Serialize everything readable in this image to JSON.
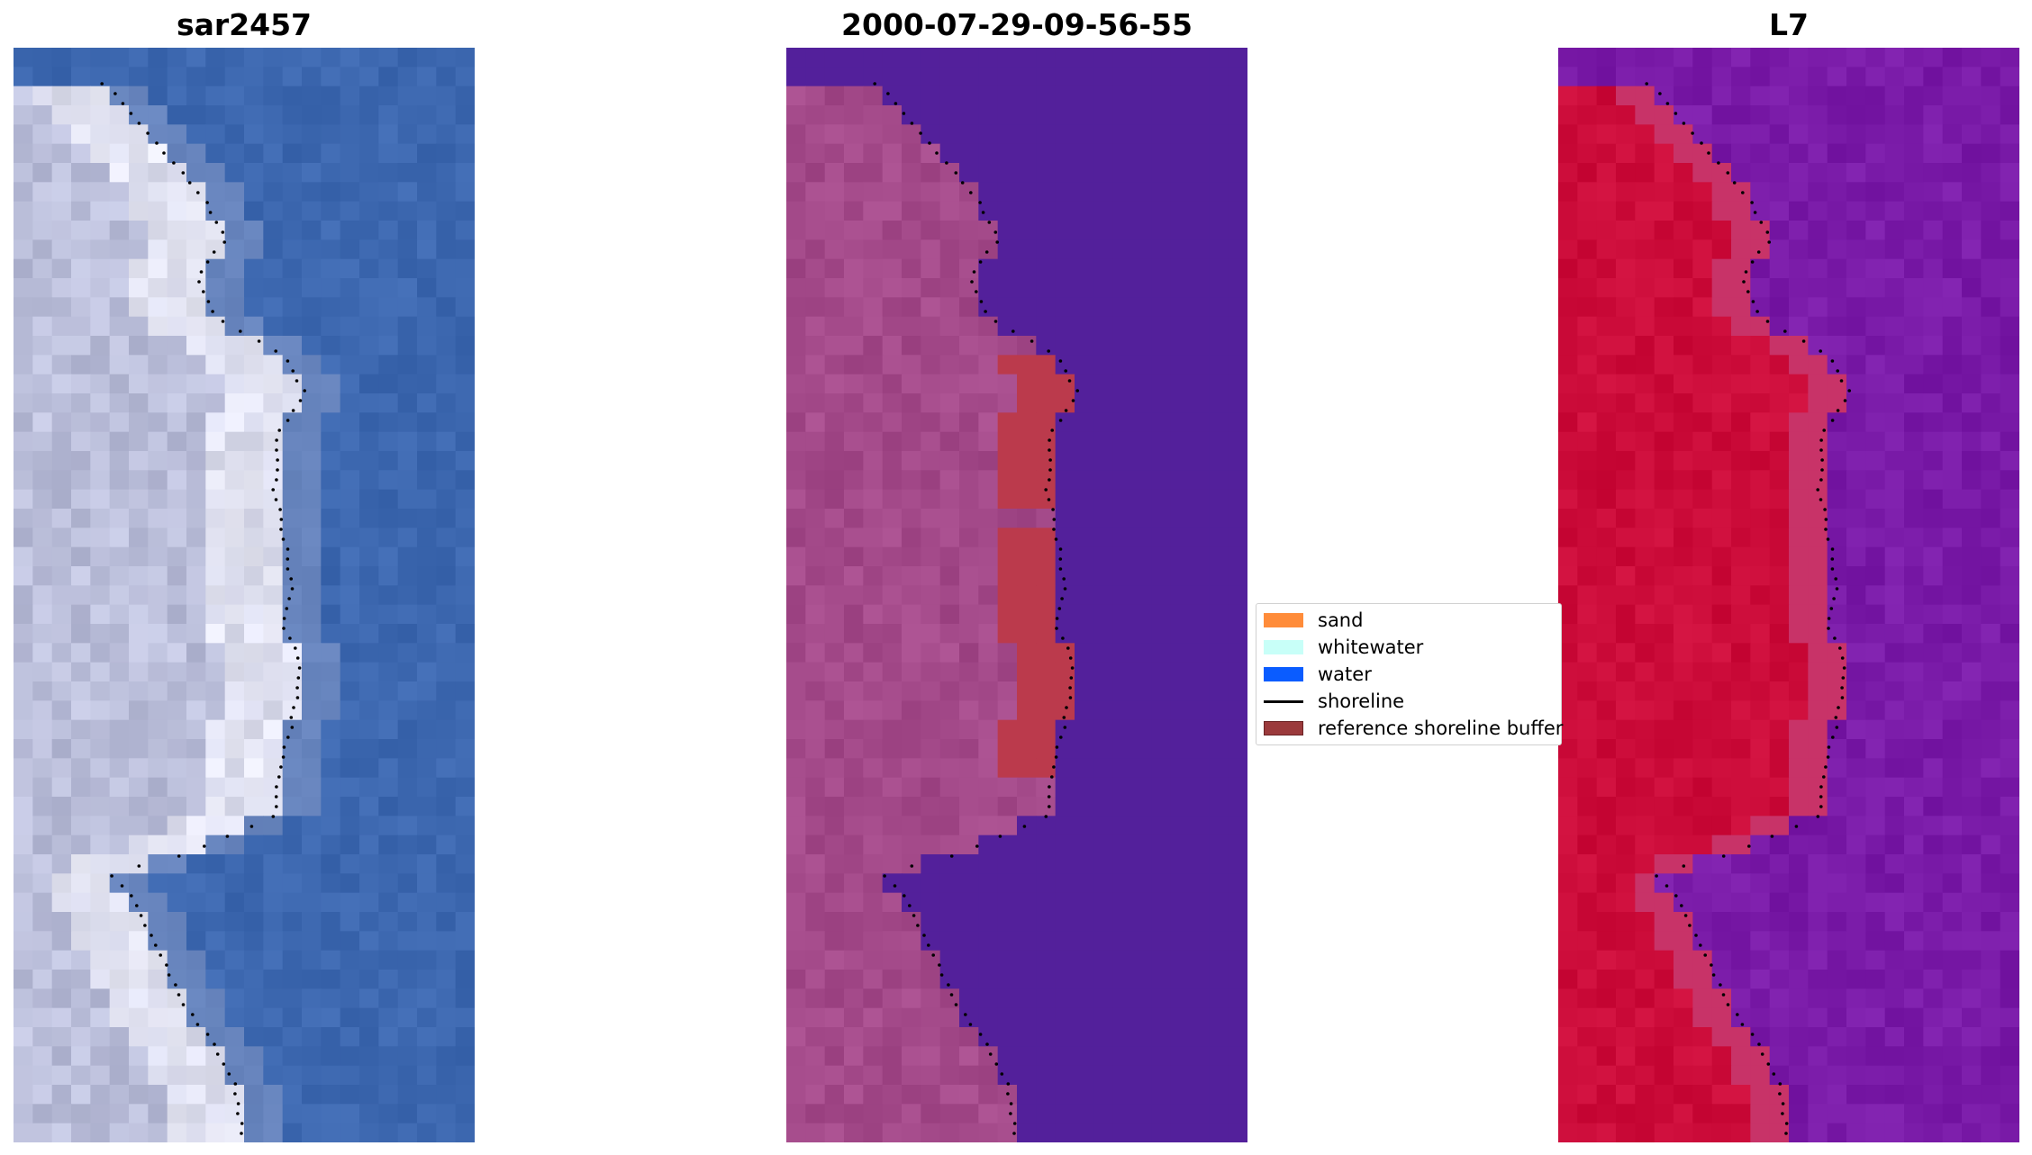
{
  "panels": [
    {
      "title": "sar2457",
      "style": "rgb"
    },
    {
      "title": "2000-07-29-09-56-55",
      "style": "classified"
    },
    {
      "title": "L7",
      "style": "index"
    }
  ],
  "legend": {
    "items": [
      {
        "label": "sand",
        "color": "#ff8c3a",
        "kind": "patch"
      },
      {
        "label": "whitewater",
        "color": "#c8fff8",
        "kind": "patch"
      },
      {
        "label": "water",
        "color": "#0a5cff",
        "kind": "patch"
      },
      {
        "label": "shoreline",
        "color": "#000000",
        "kind": "line"
      },
      {
        "label": "reference shoreline buffer",
        "color": "#9b3a3c",
        "kind": "patch"
      }
    ]
  },
  "colors": {
    "ocean_blue": "#3d68b0",
    "land_grey": "#b7bbd8",
    "bright_land": "#f2f2fb",
    "class_water": "#53209b",
    "class_land": "#a44a8a",
    "buffer_red": "#bb3a4c",
    "index_water": "#7a1ba8",
    "index_land": "#cc0c3a",
    "shoreline_dots": "#000000"
  }
}
